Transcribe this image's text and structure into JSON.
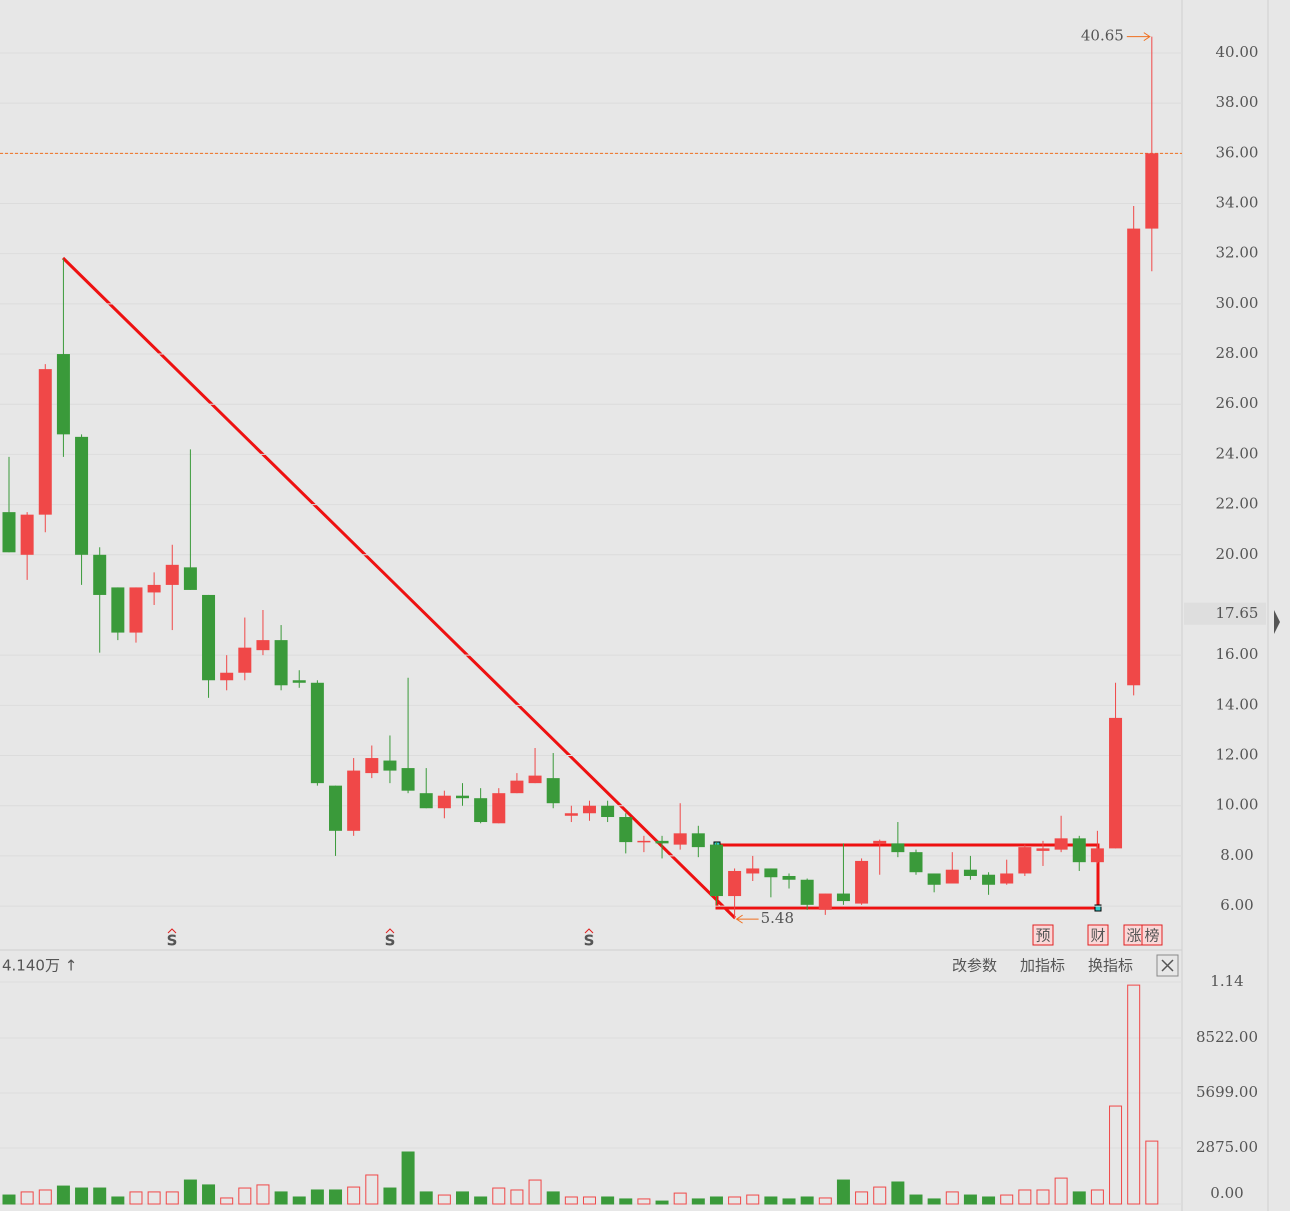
{
  "chart_data": {
    "type": "candlestick",
    "up_color": "#f04848",
    "down_color": "#3a9a3a",
    "open": [
      21.7,
      20.0,
      21.6,
      28.0,
      24.7,
      20.0,
      18.7,
      16.9,
      18.5,
      18.8,
      19.5,
      18.4,
      15.0,
      15.3,
      16.2,
      16.6,
      15.0,
      14.9,
      10.8,
      9.0,
      11.3,
      11.8,
      11.5,
      10.5,
      9.9,
      10.4,
      10.3,
      9.3,
      10.5,
      10.9,
      11.1,
      9.6,
      9.7,
      10.0,
      9.55,
      8.55,
      8.6,
      8.45,
      8.9,
      8.45,
      6.4,
      7.3,
      7.5,
      7.2,
      7.05,
      5.85,
      6.5,
      6.1,
      8.5,
      8.5,
      8.15,
      7.3,
      6.9,
      7.45,
      7.25,
      6.9,
      7.3,
      8.2,
      8.25,
      8.7,
      7.75,
      8.3,
      14.8,
      33.0
    ],
    "high": [
      23.9,
      21.7,
      27.6,
      31.8,
      24.8,
      20.3,
      18.7,
      18.7,
      19.3,
      20.4,
      24.2,
      18.4,
      16.0,
      17.5,
      17.8,
      17.2,
      15.4,
      15.0,
      10.8,
      11.9,
      12.4,
      12.8,
      15.1,
      11.5,
      10.6,
      10.9,
      10.7,
      10.7,
      11.3,
      12.3,
      12.1,
      10.0,
      10.2,
      10.2,
      9.7,
      8.8,
      8.8,
      10.1,
      9.2,
      8.55,
      7.5,
      8.0,
      7.5,
      7.3,
      7.1,
      6.5,
      8.5,
      7.9,
      8.65,
      9.35,
      8.25,
      7.3,
      8.15,
      8.0,
      7.35,
      7.85,
      8.45,
      8.6,
      9.6,
      8.8,
      9.0,
      14.9,
      33.9,
      40.65
    ],
    "low": [
      20.1,
      19.0,
      20.9,
      23.9,
      18.8,
      16.1,
      16.6,
      16.5,
      18.0,
      17.0,
      18.6,
      14.3,
      14.6,
      15.0,
      16.0,
      14.6,
      14.7,
      10.8,
      8.0,
      8.8,
      11.1,
      10.9,
      10.5,
      9.9,
      9.5,
      10.0,
      9.3,
      9.3,
      10.5,
      10.9,
      9.9,
      9.35,
      9.4,
      9.35,
      8.1,
      8.15,
      7.9,
      8.25,
      7.95,
      6.05,
      5.48,
      7.0,
      6.35,
      6.7,
      5.85,
      5.65,
      6.05,
      6.05,
      7.25,
      7.95,
      7.25,
      6.55,
      6.9,
      7.05,
      6.45,
      6.85,
      7.2,
      7.6,
      8.15,
      7.4,
      7.7,
      8.3,
      14.4,
      31.3
    ],
    "close": [
      20.1,
      21.6,
      27.4,
      24.8,
      20.0,
      18.4,
      16.9,
      18.7,
      18.8,
      19.6,
      18.6,
      15.0,
      15.3,
      16.3,
      16.6,
      14.8,
      14.9,
      10.9,
      9.0,
      11.4,
      11.9,
      11.4,
      10.6,
      9.9,
      10.4,
      10.3,
      9.35,
      10.5,
      11.0,
      11.2,
      10.1,
      9.7,
      10.0,
      9.55,
      8.55,
      8.6,
      8.5,
      8.9,
      8.35,
      6.4,
      7.4,
      7.5,
      7.15,
      7.05,
      6.05,
      6.5,
      6.2,
      7.8,
      8.6,
      8.15,
      7.35,
      6.85,
      7.45,
      7.2,
      6.85,
      7.3,
      8.35,
      8.3,
      8.7,
      7.75,
      8.3,
      13.5,
      33.0,
      36.0
    ],
    "volume": [
      460,
      620,
      720,
      920,
      820,
      820,
      360,
      620,
      620,
      620,
      1230,
      980,
      310,
      820,
      980,
      620,
      360,
      720,
      720,
      870,
      1490,
      820,
      2670,
      620,
      460,
      620,
      360,
      820,
      720,
      1230,
      620,
      360,
      360,
      360,
      260,
      260,
      150,
      560,
      260,
      360,
      360,
      460,
      360,
      260,
      360,
      310,
      1230,
      620,
      870,
      1130,
      460,
      260,
      620,
      460,
      360,
      460,
      720,
      720,
      1330,
      620,
      720,
      5030,
      11240,
      3230
    ],
    "ylim": [
      4.33,
      42.11
    ],
    "yticks": [
      {
        "value": 6,
        "label": "6.00"
      },
      {
        "value": 8,
        "label": "8.00"
      },
      {
        "value": 10,
        "label": "10.00"
      },
      {
        "value": 12,
        "label": "12.00"
      },
      {
        "value": 14,
        "label": "14.00"
      },
      {
        "value": 16,
        "label": "16.00"
      },
      {
        "value": 20,
        "label": "20.00"
      },
      {
        "value": 22,
        "label": "22.00"
      },
      {
        "value": 24,
        "label": "24.00"
      },
      {
        "value": 26,
        "label": "26.00"
      },
      {
        "value": 28,
        "label": "28.00"
      },
      {
        "value": 30,
        "label": "30.00"
      },
      {
        "value": 32,
        "label": "32.00"
      },
      {
        "value": 34,
        "label": "34.00"
      },
      {
        "value": 36,
        "label": "36.00"
      },
      {
        "value": 38,
        "label": "38.00"
      },
      {
        "value": 40,
        "label": "40.00"
      }
    ],
    "current_price": {
      "value": 17.65,
      "label": "17.65"
    },
    "highlight_line": 36,
    "max_label": {
      "value": 40.65,
      "label": "40.65"
    },
    "min_label": {
      "value": 5.48,
      "label": "5.48"
    },
    "volume_lim": [
      0,
      11400
    ],
    "volume_ticks": [
      {
        "value": 0,
        "label": "0.00"
      },
      {
        "value": 2875,
        "label": "2875.00"
      },
      {
        "value": 5699,
        "label": "5699.00"
      },
      {
        "value": 8522,
        "label": "8522.00"
      },
      {
        "value": 11400,
        "label": "1.14"
      }
    ],
    "volume_header": "4.140万 ↑",
    "buttons": [
      "改参数",
      "加指标",
      "换指标"
    ],
    "signal_marks": [
      "S",
      "S",
      "S"
    ],
    "tags": [
      "预",
      "财",
      "涨",
      "榜"
    ]
  }
}
